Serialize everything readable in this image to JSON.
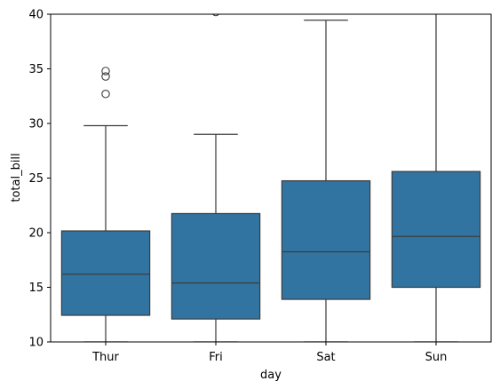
{
  "chart_data": {
    "type": "box",
    "xlabel": "day",
    "ylabel": "total_bill",
    "ylim": [
      10,
      40
    ],
    "yticks": [
      10,
      15,
      20,
      25,
      30,
      35,
      40
    ],
    "grid": false,
    "colors": {
      "box": "#3274a1",
      "line": "#3d3d3d",
      "axis": "#000000"
    },
    "boxes": [
      {
        "category": "Thur",
        "whisker_low": 10,
        "q1": 12.44,
        "median": 16.2,
        "q3": 20.16,
        "whisker_high": 29.8,
        "outliers": [
          32.7,
          34.3,
          34.8
        ]
      },
      {
        "category": "Fri",
        "whisker_low": 10,
        "q1": 12.1,
        "median": 15.4,
        "q3": 21.75,
        "whisker_high": 29.0,
        "outliers": [
          40.2
        ]
      },
      {
        "category": "Sat",
        "whisker_low": 10,
        "q1": 13.9,
        "median": 18.25,
        "q3": 24.75,
        "whisker_high": 39.45,
        "outliers": []
      },
      {
        "category": "Sun",
        "whisker_low": 10,
        "q1": 15.0,
        "median": 19.65,
        "q3": 25.6,
        "whisker_high": 41,
        "outliers": []
      }
    ]
  }
}
